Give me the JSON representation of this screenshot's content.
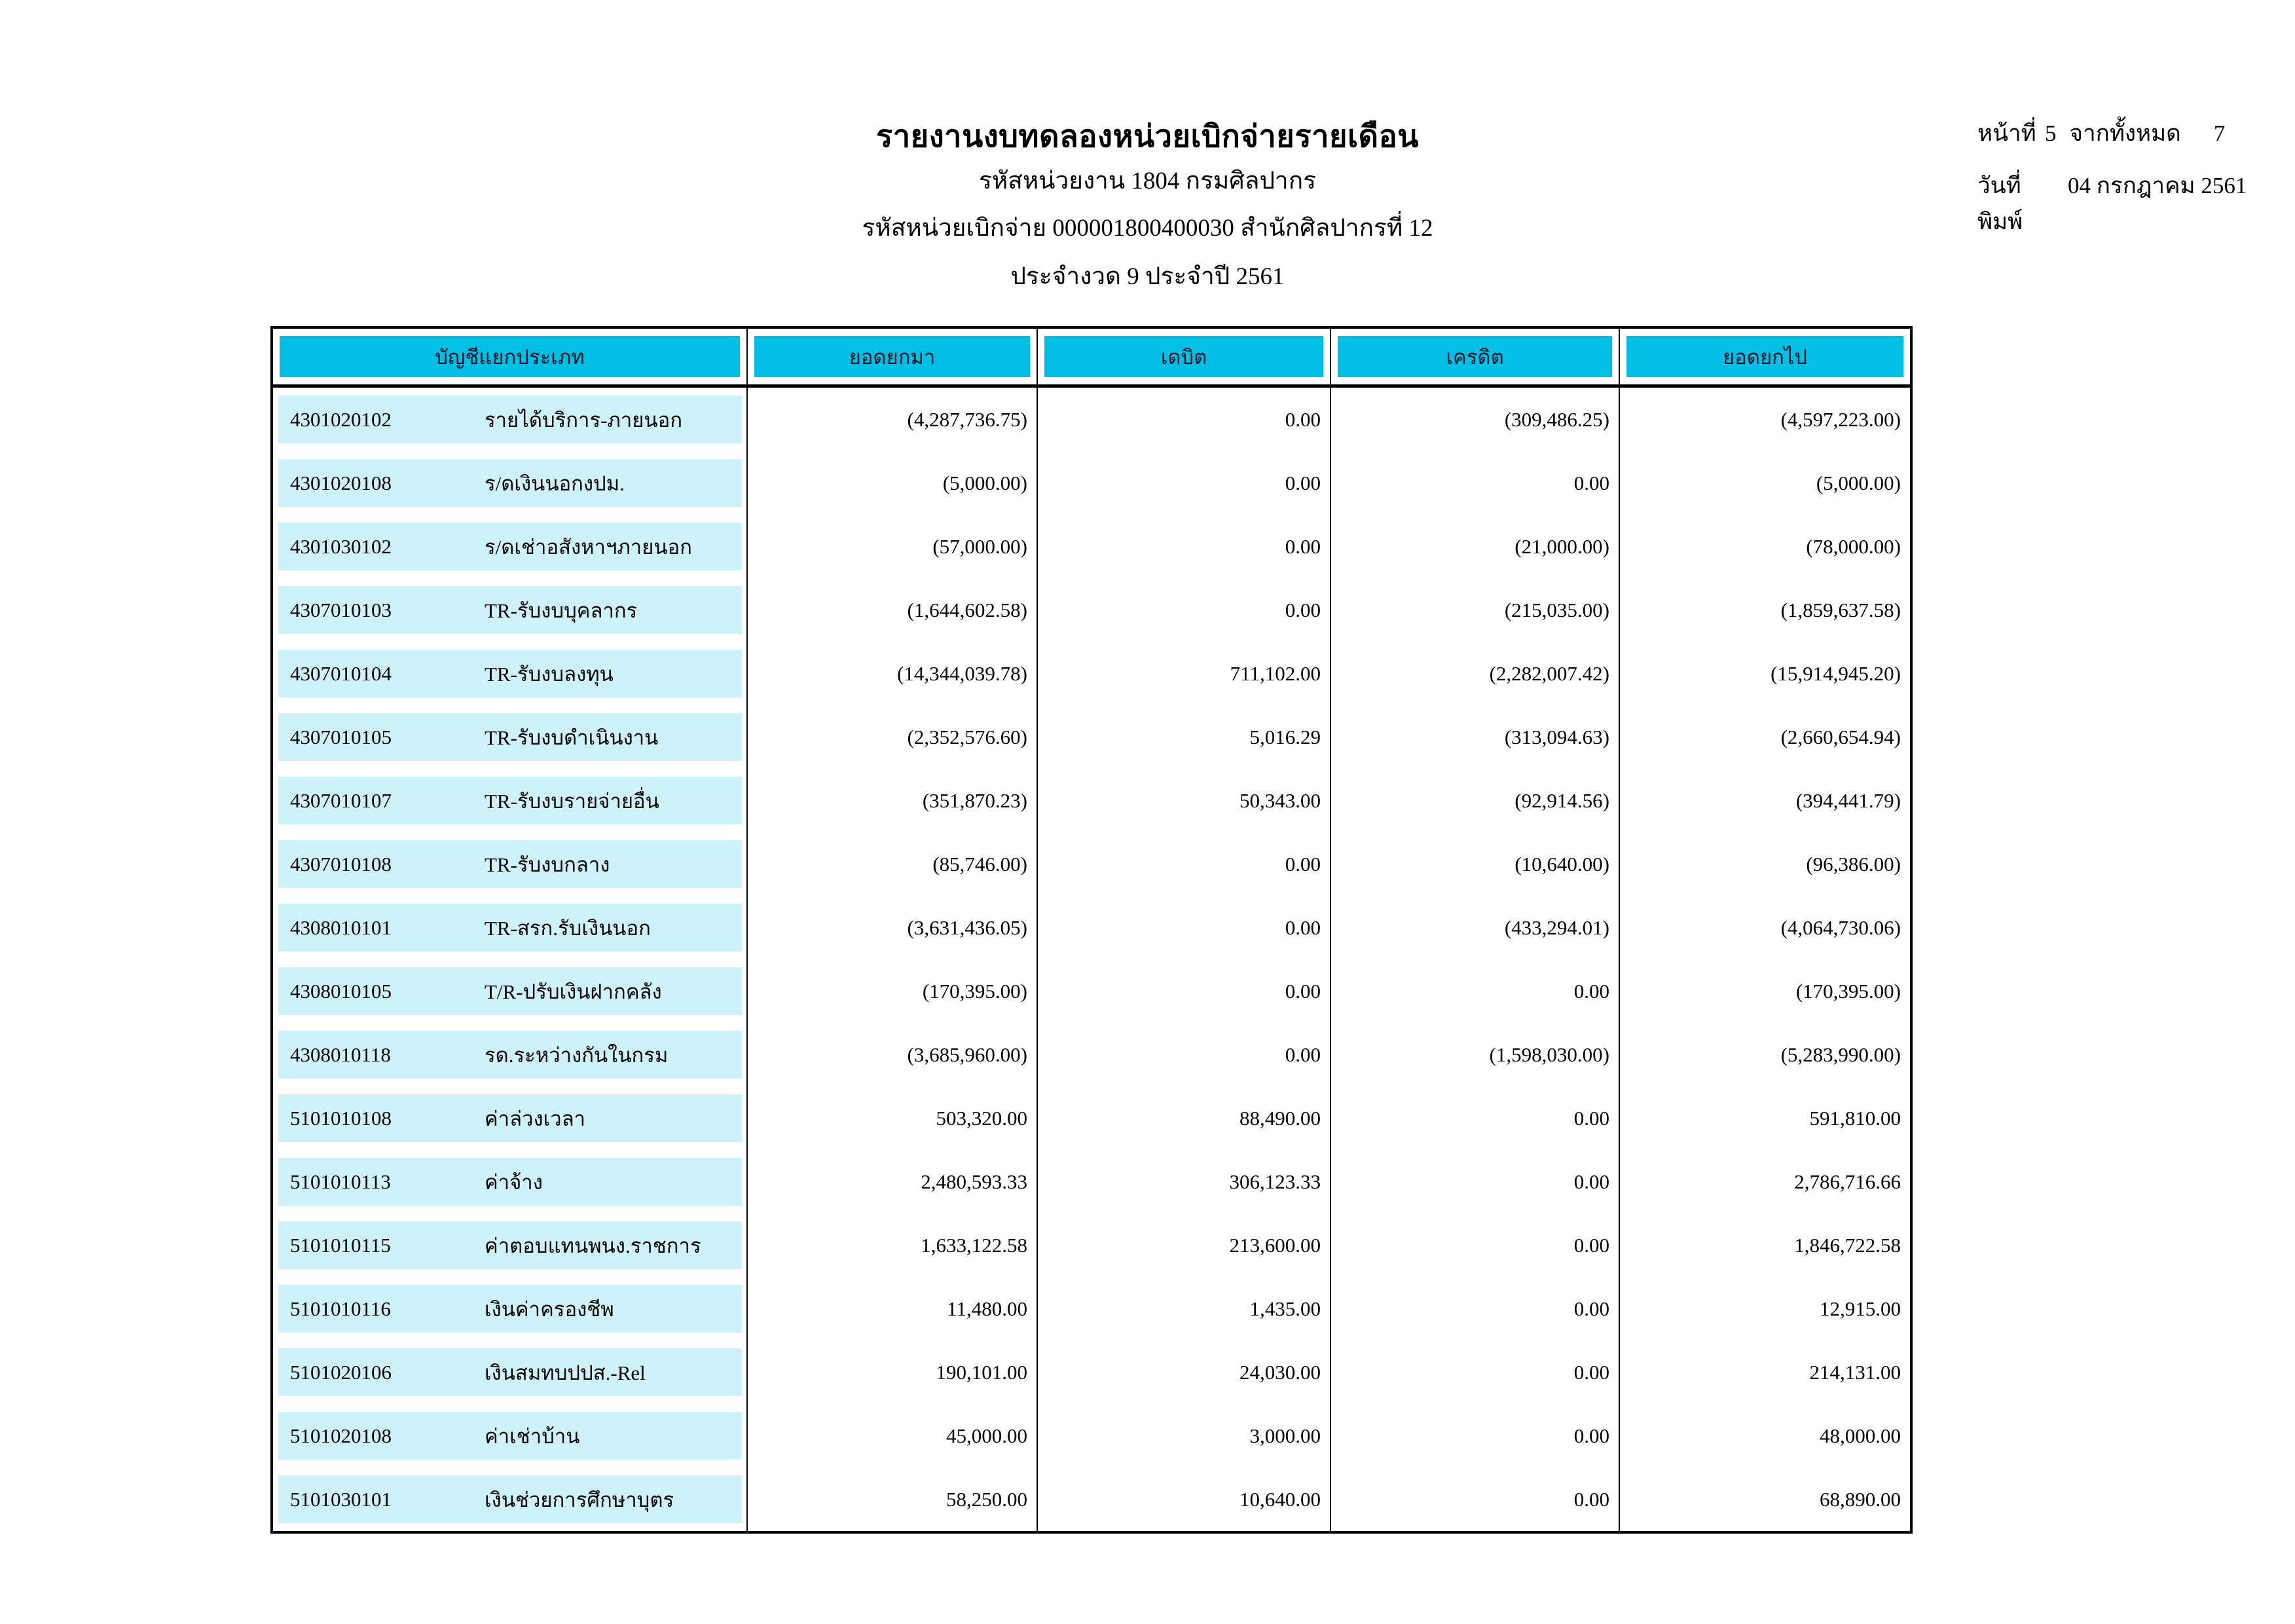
{
  "report": {
    "title": "รายงานงบทดลองหน่วยเบิกจ่ายรายเดือน",
    "agency_line": "รหัสหน่วยงาน 1804 กรมศิลปากร",
    "payment_unit_line": "รหัสหน่วยเบิกจ่าย 000001800400030 สำนักศิลปากรที่ 12",
    "period_line": "ประจำงวด 9 ประจำปี 2561"
  },
  "page_info": {
    "page_label": "หน้าที่",
    "page_number": "5",
    "of_label": "จากทั้งหมด",
    "total_pages": "7",
    "print_date_label": "วันที่พิมพ์",
    "print_date": "04 กรกฎาคม 2561"
  },
  "colors": {
    "header_band_bg": "#00bee4",
    "row_band_bg": "#cdf2fa",
    "border": "#000000"
  },
  "table": {
    "columns": [
      "บัญชีแยกประเภท",
      "ยอดยกมา",
      "เดบิต",
      "เครดิต",
      "ยอดยกไป"
    ],
    "rows": [
      {
        "code": "4301020102",
        "name": "รายได้บริการ-ภายนอก",
        "values": [
          "(4,287,736.75)",
          "0.00",
          "(309,486.25)",
          "(4,597,223.00)"
        ]
      },
      {
        "code": "4301020108",
        "name": "ร/ดเงินนอกงปม.",
        "values": [
          "(5,000.00)",
          "0.00",
          "0.00",
          "(5,000.00)"
        ]
      },
      {
        "code": "4301030102",
        "name": "ร/ดเช่าอสังหาฯภายนอก",
        "values": [
          "(57,000.00)",
          "0.00",
          "(21,000.00)",
          "(78,000.00)"
        ]
      },
      {
        "code": "4307010103",
        "name": "TR-รับงบบุคลากร",
        "values": [
          "(1,644,602.58)",
          "0.00",
          "(215,035.00)",
          "(1,859,637.58)"
        ]
      },
      {
        "code": "4307010104",
        "name": "TR-รับงบลงทุน",
        "values": [
          "(14,344,039.78)",
          "711,102.00",
          "(2,282,007.42)",
          "(15,914,945.20)"
        ]
      },
      {
        "code": "4307010105",
        "name": "TR-รับงบดำเนินงาน",
        "values": [
          "(2,352,576.60)",
          "5,016.29",
          "(313,094.63)",
          "(2,660,654.94)"
        ]
      },
      {
        "code": "4307010107",
        "name": "TR-รับงบรายจ่ายอื่น",
        "values": [
          "(351,870.23)",
          "50,343.00",
          "(92,914.56)",
          "(394,441.79)"
        ]
      },
      {
        "code": "4307010108",
        "name": "TR-รับงบกลาง",
        "values": [
          "(85,746.00)",
          "0.00",
          "(10,640.00)",
          "(96,386.00)"
        ]
      },
      {
        "code": "4308010101",
        "name": "TR-สรก.รับเงินนอก",
        "values": [
          "(3,631,436.05)",
          "0.00",
          "(433,294.01)",
          "(4,064,730.06)"
        ]
      },
      {
        "code": "4308010105",
        "name": "T/R-ปรับเงินฝากคลัง",
        "values": [
          "(170,395.00)",
          "0.00",
          "0.00",
          "(170,395.00)"
        ]
      },
      {
        "code": "4308010118",
        "name": "รด.ระหว่างกันในกรม",
        "values": [
          "(3,685,960.00)",
          "0.00",
          "(1,598,030.00)",
          "(5,283,990.00)"
        ]
      },
      {
        "code": "5101010108",
        "name": "ค่าล่วงเวลา",
        "values": [
          "503,320.00",
          "88,490.00",
          "0.00",
          "591,810.00"
        ]
      },
      {
        "code": "5101010113",
        "name": "ค่าจ้าง",
        "values": [
          "2,480,593.33",
          "306,123.33",
          "0.00",
          "2,786,716.66"
        ]
      },
      {
        "code": "5101010115",
        "name": "ค่าตอบแทนพนง.ราชการ",
        "values": [
          "1,633,122.58",
          "213,600.00",
          "0.00",
          "1,846,722.58"
        ]
      },
      {
        "code": "5101010116",
        "name": "เงินค่าครองชีพ",
        "values": [
          "11,480.00",
          "1,435.00",
          "0.00",
          "12,915.00"
        ]
      },
      {
        "code": "5101020106",
        "name": "เงินสมทบปปส.-Rel",
        "values": [
          "190,101.00",
          "24,030.00",
          "0.00",
          "214,131.00"
        ]
      },
      {
        "code": "5101020108",
        "name": "ค่าเช่าบ้าน",
        "values": [
          "45,000.00",
          "3,000.00",
          "0.00",
          "48,000.00"
        ]
      },
      {
        "code": "5101030101",
        "name": "เงินช่วยการศึกษาบุตร",
        "values": [
          "58,250.00",
          "10,640.00",
          "0.00",
          "68,890.00"
        ]
      }
    ]
  }
}
